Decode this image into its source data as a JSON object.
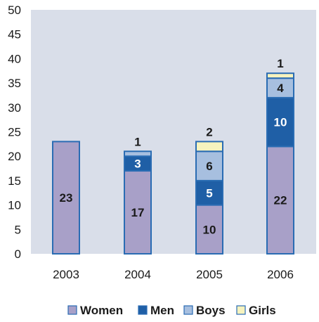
{
  "chart_data": {
    "type": "bar",
    "stacked": true,
    "categories": [
      "2003",
      "2004",
      "2005",
      "2006"
    ],
    "series": [
      {
        "name": "Women",
        "values": [
          23,
          17,
          10,
          22
        ],
        "color": "#a8a0c8",
        "label_color": "#1a1a1a"
      },
      {
        "name": "Men",
        "values": [
          0,
          3,
          5,
          10
        ],
        "color": "#1f5fa6",
        "label_color": "#ffffff"
      },
      {
        "name": "Boys",
        "values": [
          0,
          1,
          6,
          4
        ],
        "color": "#a7bfdf",
        "label_color": "#1a1a1a"
      },
      {
        "name": "Girls",
        "values": [
          0,
          0,
          2,
          1
        ],
        "color": "#f7f3be",
        "label_color": "#1a1a1a"
      }
    ],
    "data_labels": [
      [
        "23",
        "",
        "",
        ""
      ],
      [
        "17",
        "3",
        "1",
        ""
      ],
      [
        "10",
        "5",
        "6",
        "2"
      ],
      [
        "22",
        "10",
        "4",
        "1"
      ]
    ],
    "ylim": [
      0,
      50
    ],
    "yticks": [
      0,
      5,
      10,
      15,
      20,
      25,
      30,
      35,
      40,
      45,
      50
    ],
    "grid": false,
    "plot_background": "#d9dee9",
    "bar_outline": "#2a6cb3",
    "legend_position": "bottom"
  }
}
